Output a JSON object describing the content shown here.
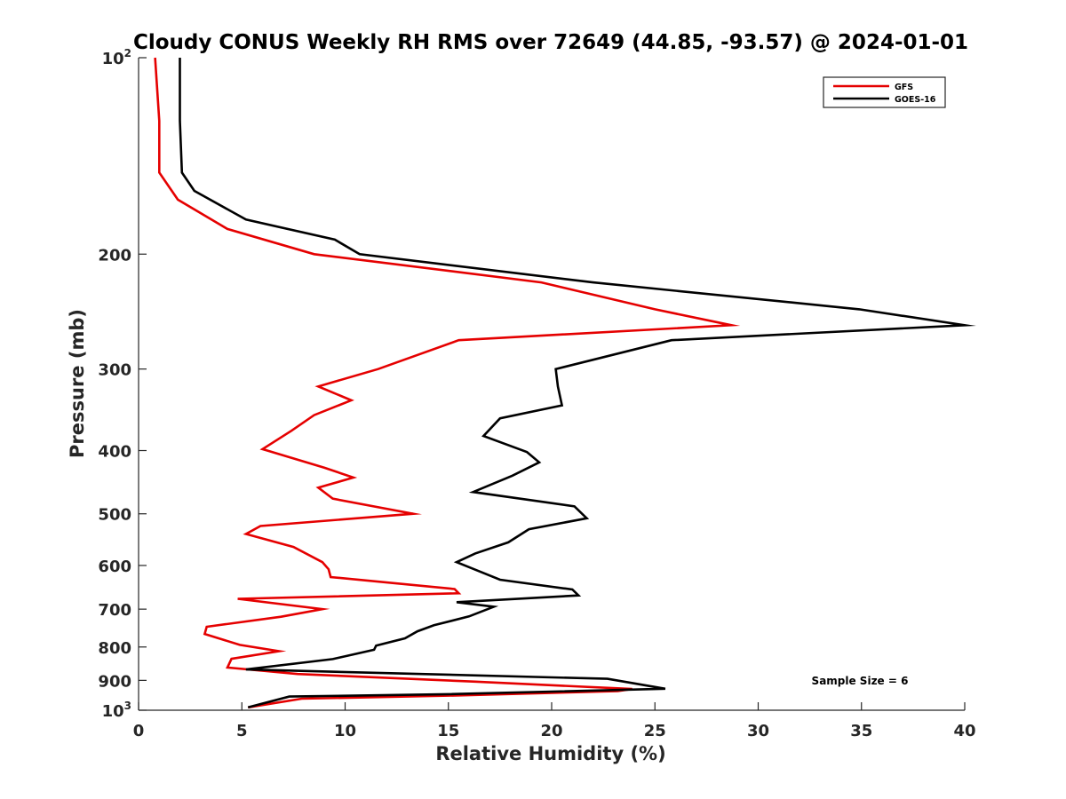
{
  "chart_data": {
    "type": "line",
    "title": "Cloudy CONUS Weekly RH RMS over 72649 (44.85, -93.57) @ 2024-01-01",
    "xlabel": "Relative Humidity (%)",
    "ylabel": "Pressure (mb)",
    "xlim": [
      0,
      40
    ],
    "ylim": [
      100,
      1000
    ],
    "yscale": "log",
    "y_inverted": true,
    "grid": false,
    "legend_position": "top-right",
    "x_ticks": [
      0,
      5,
      10,
      15,
      20,
      25,
      30,
      35,
      40
    ],
    "x_tick_labels": [
      "0",
      "5",
      "10",
      "15",
      "20",
      "25",
      "30",
      "35",
      "40"
    ],
    "y_ticks": [
      {
        "value": 100,
        "base": "10",
        "exp": "2"
      },
      {
        "value": 200,
        "label": "200"
      },
      {
        "value": 300,
        "label": "300"
      },
      {
        "value": 400,
        "label": "400"
      },
      {
        "value": 500,
        "label": "500"
      },
      {
        "value": 600,
        "label": "600"
      },
      {
        "value": 700,
        "label": "700"
      },
      {
        "value": 800,
        "label": "800"
      },
      {
        "value": 900,
        "label": "900"
      },
      {
        "value": 1000,
        "base": "10",
        "exp": "3"
      }
    ],
    "annotation": "Sample Size = 6",
    "series": [
      {
        "name": "GFS",
        "color": "#e50000",
        "points": [
          [
            0.8,
            100
          ],
          [
            1.0,
            125
          ],
          [
            1.0,
            150
          ],
          [
            1.9,
            165
          ],
          [
            4.3,
            183
          ],
          [
            8.5,
            200
          ],
          [
            19.5,
            221
          ],
          [
            25.0,
            243
          ],
          [
            28.7,
            257
          ],
          [
            15.5,
            271
          ],
          [
            11.6,
            300
          ],
          [
            8.7,
            319
          ],
          [
            10.3,
            335
          ],
          [
            8.5,
            353
          ],
          [
            7.4,
            373
          ],
          [
            6.0,
            398
          ],
          [
            9.0,
            425
          ],
          [
            10.4,
            440
          ],
          [
            8.7,
            456
          ],
          [
            9.4,
            474
          ],
          [
            13.3,
            500
          ],
          [
            5.9,
            522
          ],
          [
            5.2,
            537
          ],
          [
            7.5,
            562
          ],
          [
            8.9,
            593
          ],
          [
            9.2,
            608
          ],
          [
            9.3,
            625
          ],
          [
            15.3,
            652
          ],
          [
            15.5,
            662
          ],
          [
            4.8,
            675
          ],
          [
            8.9,
            700
          ],
          [
            6.9,
            719
          ],
          [
            3.3,
            745
          ],
          [
            3.2,
            764
          ],
          [
            4.9,
            794
          ],
          [
            6.8,
            812
          ],
          [
            4.5,
            834
          ],
          [
            4.3,
            860
          ],
          [
            7.7,
            880
          ],
          [
            16.3,
            904
          ],
          [
            23.9,
            928
          ],
          [
            23.2,
            935
          ],
          [
            15.0,
            950
          ],
          [
            7.9,
            960
          ],
          [
            5.3,
            990
          ]
        ]
      },
      {
        "name": "GOES-16",
        "color": "#000000",
        "points": [
          [
            2.0,
            100
          ],
          [
            2.0,
            125
          ],
          [
            2.1,
            150
          ],
          [
            2.7,
            160
          ],
          [
            5.2,
            177
          ],
          [
            9.5,
            190
          ],
          [
            10.7,
            200
          ],
          [
            22.0,
            221
          ],
          [
            34.9,
            243
          ],
          [
            40.0,
            257
          ],
          [
            25.8,
            271
          ],
          [
            20.2,
            300
          ],
          [
            20.3,
            319
          ],
          [
            20.5,
            341
          ],
          [
            17.5,
            357
          ],
          [
            16.7,
            380
          ],
          [
            18.8,
            402
          ],
          [
            19.4,
            417
          ],
          [
            18.1,
            437
          ],
          [
            16.2,
            463
          ],
          [
            21.1,
            487
          ],
          [
            21.7,
            508
          ],
          [
            18.9,
            528
          ],
          [
            17.9,
            553
          ],
          [
            16.3,
            575
          ],
          [
            15.4,
            593
          ],
          [
            16.3,
            609
          ],
          [
            17.5,
            631
          ],
          [
            21.0,
            653
          ],
          [
            21.3,
            667
          ],
          [
            15.4,
            683
          ],
          [
            17.2,
            694
          ],
          [
            16.0,
            718
          ],
          [
            14.3,
            741
          ],
          [
            13.5,
            757
          ],
          [
            12.9,
            776
          ],
          [
            11.5,
            796
          ],
          [
            11.4,
            808
          ],
          [
            9.4,
            835
          ],
          [
            5.2,
            866
          ],
          [
            22.7,
            895
          ],
          [
            25.5,
            927
          ],
          [
            15.0,
            945
          ],
          [
            7.3,
            953
          ],
          [
            5.3,
            990
          ]
        ]
      }
    ]
  }
}
